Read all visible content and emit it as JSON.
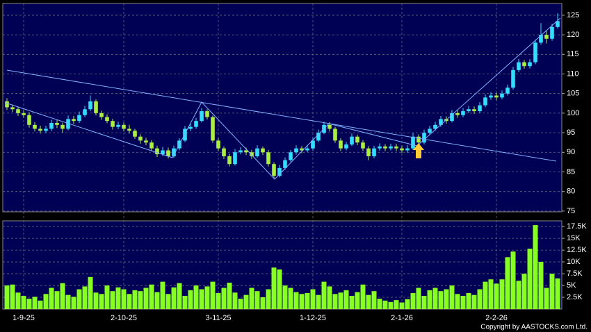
{
  "chart_data": [
    {
      "type": "candlestick",
      "categories": [
        null,
        null,
        null,
        "1-9-25",
        null,
        null,
        null,
        null,
        null,
        null,
        null,
        null,
        null,
        null,
        null,
        null,
        null,
        null,
        null,
        null,
        null,
        "2-10-25",
        null,
        null,
        null,
        null,
        null,
        null,
        null,
        null,
        null,
        null,
        null,
        null,
        null,
        null,
        null,
        null,
        "3-11-25",
        null,
        null,
        null,
        null,
        null,
        null,
        null,
        null,
        null,
        null,
        null,
        null,
        null,
        null,
        null,
        null,
        "1-12-25",
        null,
        null,
        null,
        null,
        null,
        null,
        null,
        null,
        null,
        null,
        null,
        null,
        null,
        null,
        null,
        "2-1-26",
        null,
        null,
        null,
        null,
        null,
        null,
        null,
        null,
        null,
        null,
        null,
        null,
        null,
        null,
        null,
        null,
        "2-2-26",
        null,
        null,
        null,
        null,
        null,
        null,
        null,
        null,
        null,
        null,
        null
      ],
      "open": [
        103,
        101.5,
        101,
        100,
        99.5,
        97,
        96,
        95.5,
        96,
        97.5,
        97,
        96,
        98.5,
        98,
        99.5,
        101,
        103,
        100,
        99,
        98,
        96.5,
        97,
        96,
        95.5,
        94,
        93,
        92.5,
        91,
        89.5,
        90.5,
        89,
        91,
        93,
        96,
        96.5,
        98,
        100.5,
        99,
        93,
        91,
        89,
        87,
        90,
        90.5,
        90,
        89,
        91,
        90,
        87,
        84,
        86,
        88,
        90,
        91,
        90.5,
        91,
        93,
        95,
        97,
        96,
        93,
        91,
        92,
        94,
        92.5,
        91,
        89,
        91,
        91.5,
        91,
        91.5,
        91,
        90.5,
        91,
        94,
        92.5,
        95,
        96,
        97,
        98.5,
        98,
        100,
        99.5,
        100.5,
        101,
        100.5,
        102,
        104,
        104.5,
        104,
        105,
        106.5,
        111,
        113,
        112,
        113,
        118,
        120,
        119,
        122
      ],
      "high": [
        103.8,
        102.2,
        101.6,
        100.8,
        100.2,
        97.7,
        96.8,
        96.8,
        98.3,
        98.2,
        97.6,
        99.4,
        99.3,
        100.4,
        101.8,
        104.5,
        103.5,
        100.6,
        99.7,
        98.6,
        97.8,
        97.6,
        97,
        96,
        94.6,
        93.7,
        93.1,
        91.7,
        91.4,
        91.2,
        91.7,
        93.6,
        96.7,
        97.3,
        98.8,
        101.3,
        101,
        99.4,
        93.6,
        91.5,
        89.6,
        90.8,
        91.3,
        91.2,
        90.6,
        91.8,
        91.5,
        90.6,
        87.5,
        86.8,
        88.7,
        90.6,
        91.8,
        91.6,
        91.9,
        93.8,
        95.8,
        97.8,
        97.7,
        96.5,
        93.6,
        92.7,
        94.8,
        94.5,
        93.1,
        91.6,
        91.7,
        92.3,
        92.1,
        92.2,
        92.2,
        91.7,
        91.8,
        95,
        94.6,
        95.8,
        96.8,
        97.8,
        99.3,
        99.2,
        100.8,
        100.7,
        101.3,
        101.8,
        101.7,
        102.8,
        104.8,
        105.3,
        105.2,
        105.8,
        107.3,
        111.8,
        113.8,
        113.6,
        113.8,
        118.8,
        123,
        121,
        122.8,
        125.5
      ],
      "low": [
        100.8,
        100.3,
        99.3,
        98.8,
        96.3,
        95.3,
        94.8,
        94.9,
        95.4,
        96.2,
        95,
        95.6,
        97.2,
        97.5,
        99,
        100.5,
        99.4,
        98.3,
        97.4,
        95.8,
        95.9,
        95.3,
        94.8,
        93.4,
        92.2,
        91.8,
        90.3,
        88.8,
        89,
        88.4,
        88.6,
        90.5,
        92.6,
        95.4,
        96,
        97.6,
        98.4,
        92.4,
        90.3,
        88.3,
        86.4,
        86.6,
        89.5,
        89.3,
        88.3,
        88.6,
        89.3,
        86.4,
        83.4,
        83.6,
        85.5,
        87.6,
        89.4,
        89.8,
        90,
        90.5,
        92.6,
        94.6,
        95.3,
        92.4,
        90.3,
        90.5,
        91.6,
        91.8,
        90.3,
        88,
        88.5,
        90.4,
        90.3,
        90.5,
        90.3,
        89.8,
        89.9,
        90.6,
        91.8,
        92,
        94.5,
        95.5,
        96.5,
        97.3,
        97.6,
        98.8,
        99,
        100,
        99.8,
        100,
        101.5,
        103.4,
        103.3,
        103.5,
        104.5,
        106,
        110.5,
        111.3,
        111.4,
        112.5,
        117.5,
        117.8,
        118.5,
        121.6
      ],
      "close": [
        101.5,
        101,
        100,
        99.5,
        97,
        96,
        95.5,
        96,
        97.5,
        97,
        96,
        98.5,
        98,
        99.5,
        101,
        103,
        100,
        99,
        98,
        96.5,
        97,
        96,
        95.5,
        94,
        93,
        92.5,
        91,
        89.5,
        90.5,
        89,
        91,
        93,
        96,
        96.5,
        98,
        100.5,
        99,
        93,
        91,
        89,
        87,
        90,
        90.5,
        90,
        89,
        91,
        90,
        87,
        84,
        86,
        88,
        90,
        91,
        90.5,
        91,
        93,
        95,
        97,
        96,
        93,
        91,
        92,
        94,
        92.5,
        91,
        89,
        91,
        91.5,
        91,
        91.5,
        91,
        90.5,
        91,
        94,
        92.5,
        95,
        96,
        97,
        98.5,
        98,
        100,
        99.5,
        100.5,
        101,
        100.5,
        102,
        104,
        104.5,
        104,
        105,
        106.5,
        111,
        113,
        112,
        113,
        118,
        120,
        119,
        122,
        123.5
      ],
      "up_color": "#33ddff",
      "down_color": "#aaee44",
      "ylim": [
        74.8,
        128
      ],
      "yticks": [
        75,
        80,
        85,
        90,
        95,
        100,
        105,
        110,
        115,
        120,
        125
      ],
      "grid": true
    },
    {
      "type": "bar",
      "values": [
        5000,
        5200,
        3500,
        2800,
        2200,
        2600,
        1800,
        3200,
        4500,
        3800,
        5500,
        3000,
        2600,
        4200,
        4800,
        6800,
        3500,
        3200,
        5000,
        3800,
        4600,
        4200,
        3200,
        4000,
        3800,
        4500,
        5200,
        3600,
        5800,
        3200,
        4600,
        5500,
        2800,
        4000,
        5000,
        4200,
        4800,
        5800,
        3400,
        4500,
        5600,
        3500,
        2200,
        3000,
        4500,
        3800,
        2500,
        4200,
        8800,
        8400,
        5000,
        4500,
        3600,
        3200,
        3400,
        4200,
        3000,
        5800,
        4800,
        3200,
        3500,
        4000,
        2800,
        3600,
        5200,
        3000,
        3800,
        2200,
        1800,
        1500,
        1900,
        1400,
        2100,
        3400,
        4500,
        2800,
        4000,
        4500,
        3800,
        4200,
        5000,
        3200,
        2800,
        3400,
        3000,
        4200,
        5800,
        6300,
        5400,
        6300,
        11000,
        12200,
        6000,
        7500,
        12800,
        17800,
        10000,
        4500,
        7500,
        6500
      ],
      "color": "#88ff22",
      "ylim": [
        0,
        18700
      ],
      "yticks": [
        {
          "value": 2500,
          "label": "2.5K"
        },
        {
          "value": 5000,
          "label": "5K"
        },
        {
          "value": 7500,
          "label": "7.5K"
        },
        {
          "value": 10000,
          "label": "10K"
        },
        {
          "value": 12500,
          "label": "12.5K"
        },
        {
          "value": 15000,
          "label": "15K"
        },
        {
          "value": 17500,
          "label": "17.5K"
        }
      ],
      "grid": true,
      "footer": "Copyright by AASTOCKS.com Ltd."
    }
  ]
}
